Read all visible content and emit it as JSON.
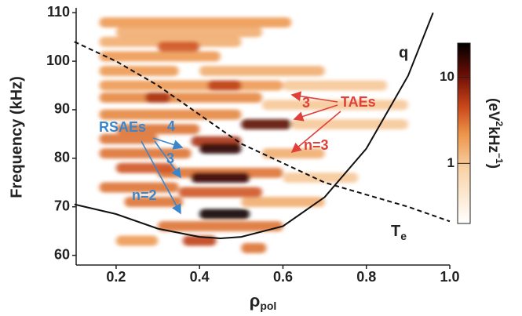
{
  "chart_data": {
    "type": "heatmap",
    "ylabel": "Frequency (kHz)",
    "xlabel": [
      "ρ",
      "pol"
    ],
    "xlim": [
      0.1,
      1.0
    ],
    "ylim": [
      58,
      111
    ],
    "xticks": [
      0.2,
      0.4,
      0.6,
      0.8,
      {
        "value": 1,
        "label": "1.0"
      }
    ],
    "yticks": [
      60,
      70,
      80,
      90,
      100,
      110
    ],
    "colorbar": {
      "scale": "log",
      "clim": [
        0.2,
        25
      ],
      "ticks": [
        1,
        10
      ],
      "label": [
        "(eV",
        "2",
        "kHz",
        "−1",
        ")"
      ]
    },
    "streaks": {
      "rho_start": [
        0.16,
        0.2,
        0.16,
        0.16,
        0.3,
        0.16,
        0.4,
        0.16,
        0.42,
        0.6,
        0.16,
        0.27,
        0.55,
        0.16,
        0.5,
        0.62,
        0.2,
        0.16,
        0.38,
        0.4,
        0.55,
        0.16,
        0.2,
        0.38,
        0.3,
        0.16,
        0.35,
        0.22,
        0.4,
        0.3,
        0.36,
        0.5,
        0.2,
        0.5,
        0.6
      ],
      "rho_end": [
        0.62,
        0.55,
        0.5,
        0.45,
        0.4,
        0.35,
        0.7,
        0.6,
        0.5,
        0.85,
        0.55,
        0.33,
        0.9,
        0.5,
        0.62,
        0.9,
        0.4,
        0.3,
        0.5,
        0.5,
        0.7,
        0.38,
        0.34,
        0.52,
        0.6,
        0.35,
        0.55,
        0.36,
        0.52,
        0.6,
        0.44,
        0.56,
        0.3,
        0.7,
        0.78
      ],
      "frequency": [
        108,
        106,
        104,
        101,
        103,
        98,
        98,
        95,
        95,
        95,
        92.5,
        92.5,
        91,
        89,
        87,
        87,
        86,
        84,
        83.5,
        82,
        81,
        81,
        78,
        76,
        77,
        74,
        73,
        71,
        68.5,
        66,
        63,
        61.5,
        63,
        71,
        76
      ],
      "intensity": [
        2,
        1.5,
        1.5,
        2,
        4,
        2,
        1.5,
        2,
        5,
        1,
        2.5,
        6,
        1,
        2.5,
        12,
        1,
        3,
        3,
        6,
        18,
        1.5,
        3,
        4,
        16,
        3,
        3,
        4,
        3,
        22,
        3,
        5,
        3,
        2,
        1.5,
        1
      ]
    },
    "lines": [
      {
        "name": "q",
        "style": "solid",
        "x": [
          0.1,
          0.2,
          0.3,
          0.4,
          0.45,
          0.5,
          0.6,
          0.7,
          0.8,
          0.9,
          0.96
        ],
        "y": [
          70.5,
          68.5,
          65.5,
          63.8,
          63.5,
          63.8,
          66,
          72,
          82,
          97,
          110
        ]
      },
      {
        "name": [
          "T",
          "e"
        ],
        "style": "dashed",
        "x": [
          0.1,
          0.2,
          0.3,
          0.4,
          0.5,
          0.6,
          0.7,
          0.8,
          0.9,
          1.0
        ],
        "y": [
          104,
          100,
          95,
          89,
          83,
          79,
          75,
          72.5,
          70,
          67
        ]
      }
    ],
    "annotations": [
      {
        "text": "TAEs",
        "color": "#e0403a"
      },
      {
        "text": "3",
        "color": "#e0403a"
      },
      {
        "text": "n=3",
        "color": "#e0403a"
      },
      {
        "text": "RSAEs",
        "color": "#3a86cc"
      },
      {
        "text": "4",
        "color": "#3a86cc"
      },
      {
        "text": "3",
        "color": "#3a86cc"
      },
      {
        "text": "n=2",
        "color": "#3a86cc"
      }
    ]
  }
}
